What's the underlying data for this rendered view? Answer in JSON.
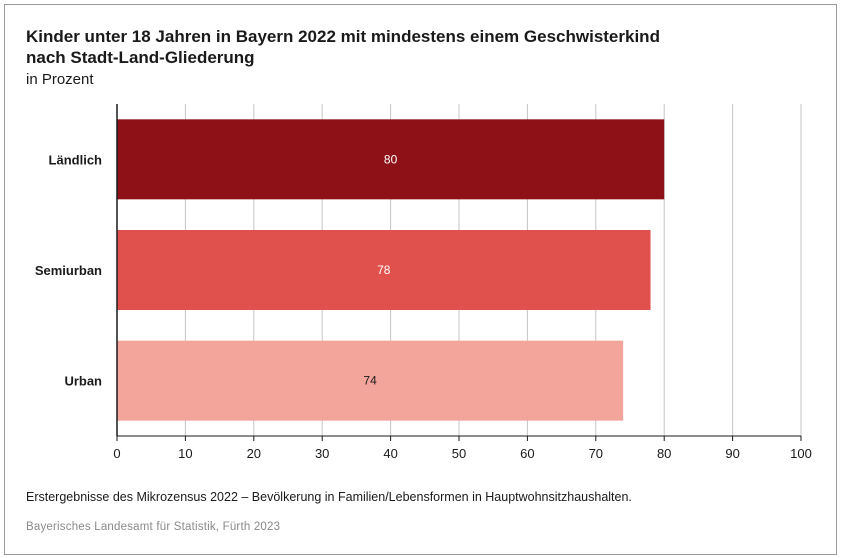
{
  "title_line1": "Kinder unter 18 Jahren in Bayern 2022 mit mindestens einem Geschwisterkind",
  "title_line2": "nach Stadt-Land-Gliederung",
  "unit": "in Prozent",
  "note": "Erstergebnisse des Mikrozensus 2022 – Bevölkerung in Familien/Lebensformen in Hauptwohnsitzhaushalten.",
  "source": "Bayerisches Landesamt für Statistik, Fürth 2023",
  "colors": {
    "bars": [
      "#8e1118",
      "#e0514e",
      "#f4a59b"
    ],
    "label_text": [
      "#ffffff",
      "#ffffff",
      "#1a1a1a"
    ],
    "grid": "#c4c4c4",
    "axis": "#1a1a1a"
  },
  "chart_data": {
    "type": "bar",
    "orientation": "horizontal",
    "categories": [
      "Ländlich",
      "Semiurban",
      "Urban"
    ],
    "values": [
      80,
      78,
      74
    ],
    "data_labels": [
      "80",
      "78",
      "74"
    ],
    "xlim": [
      0,
      100
    ],
    "xticks": [
      0,
      10,
      20,
      30,
      40,
      50,
      60,
      70,
      80,
      90,
      100
    ],
    "grid": true,
    "legend": false
  }
}
